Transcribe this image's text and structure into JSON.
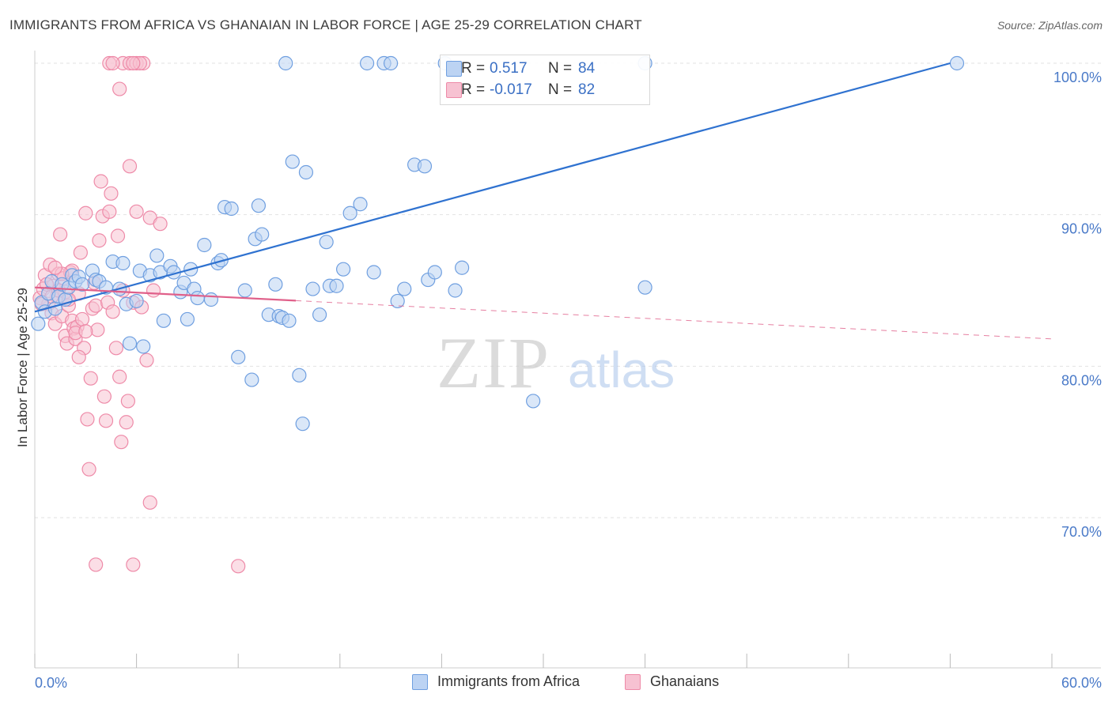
{
  "header": {
    "title": "IMMIGRANTS FROM AFRICA VS GHANAIAN IN LABOR FORCE | AGE 25-29 CORRELATION CHART",
    "source": "Source: ZipAtlas.com"
  },
  "watermark": {
    "zip": "ZIP",
    "atlas": "atlas"
  },
  "legend": {
    "rows": [
      {
        "r_label": "R =",
        "r_value": "0.517",
        "n_label": "N =",
        "n_value": "84"
      },
      {
        "r_label": "R =",
        "r_value": "-0.017",
        "n_label": "N =",
        "n_value": "82"
      }
    ]
  },
  "bottom_legend": {
    "items": [
      {
        "label": "Immigrants from Africa"
      },
      {
        "label": "Ghanaians"
      }
    ]
  },
  "colors": {
    "blue": "#6f9fe0",
    "blue_fill": "#bcd3f3",
    "blue_line": "#2f72d0",
    "pink": "#ee8aa8",
    "pink_fill": "#f7c2d2",
    "pink_line": "#e0608a",
    "tick_text": "#4a7ac8",
    "grid": "#e2e2e2"
  },
  "chart_data": {
    "type": "scatter",
    "title": "IMMIGRANTS FROM AFRICA VS GHANAIAN IN LABOR FORCE | AGE 25-29 CORRELATION CHART",
    "xlabel": "",
    "ylabel": "In Labor Force | Age 25-29",
    "xlim": [
      0,
      60
    ],
    "ylim": [
      60.5,
      101.5
    ],
    "x_tick_labels": [
      {
        "value": 0,
        "label": "0.0%"
      },
      {
        "value": 60,
        "label": "60.0%"
      }
    ],
    "y_tick_labels": [
      {
        "value": 70,
        "label": "70.0%"
      },
      {
        "value": 80,
        "label": "80.0%"
      },
      {
        "value": 90,
        "label": "90.0%"
      },
      {
        "value": 100,
        "label": "100.0%"
      }
    ],
    "x_minor_ticks": [
      0,
      6,
      12,
      18,
      24,
      30,
      36,
      42,
      48,
      54,
      60
    ],
    "series": [
      {
        "name": "Immigrants from Africa",
        "trend": {
          "x0": 0,
          "y0": 83.6,
          "x1": 54,
          "y1": 100.0,
          "dashed_from": null
        },
        "points": [
          [
            0.2,
            82.8
          ],
          [
            0.4,
            84.2
          ],
          [
            0.6,
            83.6
          ],
          [
            0.8,
            84.8
          ],
          [
            1.0,
            85.6
          ],
          [
            1.2,
            83.8
          ],
          [
            1.4,
            84.6
          ],
          [
            1.6,
            85.4
          ],
          [
            1.8,
            84.4
          ],
          [
            2.0,
            85.2
          ],
          [
            2.2,
            86.0
          ],
          [
            2.4,
            85.6
          ],
          [
            2.6,
            85.9
          ],
          [
            2.8,
            85.4
          ],
          [
            3.4,
            86.3
          ],
          [
            3.6,
            85.7
          ],
          [
            3.8,
            85.6
          ],
          [
            4.2,
            85.2
          ],
          [
            4.6,
            86.9
          ],
          [
            5.0,
            85.1
          ],
          [
            5.2,
            86.8
          ],
          [
            5.4,
            84.1
          ],
          [
            5.6,
            81.5
          ],
          [
            6.0,
            84.3
          ],
          [
            6.2,
            86.3
          ],
          [
            6.8,
            86.0
          ],
          [
            6.4,
            81.3
          ],
          [
            7.4,
            86.2
          ],
          [
            7.2,
            87.3
          ],
          [
            7.6,
            83.0
          ],
          [
            8.0,
            86.6
          ],
          [
            8.2,
            86.2
          ],
          [
            8.6,
            84.9
          ],
          [
            8.8,
            85.5
          ],
          [
            9.0,
            83.1
          ],
          [
            9.2,
            86.4
          ],
          [
            9.4,
            85.1
          ],
          [
            9.6,
            84.5
          ],
          [
            10.0,
            88.0
          ],
          [
            10.4,
            84.4
          ],
          [
            10.8,
            86.8
          ],
          [
            11.0,
            87.0
          ],
          [
            11.2,
            90.5
          ],
          [
            11.6,
            90.4
          ],
          [
            12.0,
            80.6
          ],
          [
            12.4,
            85.0
          ],
          [
            12.8,
            79.1
          ],
          [
            13.0,
            88.4
          ],
          [
            13.2,
            90.6
          ],
          [
            13.4,
            88.7
          ],
          [
            13.8,
            83.4
          ],
          [
            14.2,
            85.4
          ],
          [
            14.4,
            83.3
          ],
          [
            14.6,
            83.2
          ],
          [
            15.0,
            83.0
          ],
          [
            15.2,
            93.5
          ],
          [
            15.6,
            79.4
          ],
          [
            15.8,
            76.2
          ],
          [
            16.0,
            92.8
          ],
          [
            16.4,
            85.1
          ],
          [
            16.8,
            83.4
          ],
          [
            17.2,
            88.2
          ],
          [
            17.4,
            85.3
          ],
          [
            17.8,
            85.3
          ],
          [
            18.2,
            86.4
          ],
          [
            18.6,
            90.1
          ],
          [
            19.2,
            90.7
          ],
          [
            20.0,
            86.2
          ],
          [
            21.4,
            84.3
          ],
          [
            21.8,
            85.1
          ],
          [
            22.4,
            93.3
          ],
          [
            23.0,
            93.2
          ],
          [
            23.2,
            85.7
          ],
          [
            23.6,
            86.2
          ],
          [
            24.8,
            85.0
          ],
          [
            25.2,
            86.5
          ],
          [
            29.4,
            77.7
          ],
          [
            36.0,
            85.2
          ],
          [
            14.8,
            100
          ],
          [
            19.6,
            100
          ],
          [
            20.6,
            100
          ],
          [
            21.0,
            100
          ],
          [
            24.2,
            100
          ],
          [
            36.0,
            100
          ],
          [
            54.4,
            100
          ]
        ]
      },
      {
        "name": "Ghanaians",
        "trend": {
          "x0": 0,
          "y0": 85.2,
          "x1": 60,
          "y1": 81.8,
          "solid_until": 15.4
        },
        "points": [
          [
            0.3,
            84.5
          ],
          [
            0.5,
            85.1
          ],
          [
            0.6,
            86.0
          ],
          [
            0.8,
            84.1
          ],
          [
            0.9,
            86.7
          ],
          [
            1.0,
            83.5
          ],
          [
            1.1,
            85.3
          ],
          [
            1.2,
            82.8
          ],
          [
            1.3,
            84.6
          ],
          [
            1.4,
            86.1
          ],
          [
            1.5,
            88.7
          ],
          [
            1.6,
            83.3
          ],
          [
            1.7,
            85.8
          ],
          [
            1.8,
            82.0
          ],
          [
            1.9,
            81.5
          ],
          [
            2.0,
            84.0
          ],
          [
            2.1,
            86.2
          ],
          [
            2.2,
            83.0
          ],
          [
            2.3,
            82.5
          ],
          [
            2.4,
            81.8
          ],
          [
            2.5,
            82.6
          ],
          [
            2.6,
            84.8
          ],
          [
            2.7,
            87.5
          ],
          [
            2.8,
            83.1
          ],
          [
            2.9,
            81.2
          ],
          [
            3.0,
            90.1
          ],
          [
            3.1,
            76.5
          ],
          [
            3.2,
            73.2
          ],
          [
            3.3,
            79.2
          ],
          [
            3.4,
            83.8
          ],
          [
            3.5,
            85.5
          ],
          [
            3.6,
            84.0
          ],
          [
            3.7,
            82.4
          ],
          [
            3.8,
            88.3
          ],
          [
            3.9,
            92.2
          ],
          [
            4.0,
            89.9
          ],
          [
            4.1,
            78.0
          ],
          [
            4.2,
            76.4
          ],
          [
            4.3,
            84.2
          ],
          [
            4.4,
            90.2
          ],
          [
            4.5,
            91.4
          ],
          [
            4.6,
            83.6
          ],
          [
            4.8,
            81.2
          ],
          [
            4.9,
            88.6
          ],
          [
            5.0,
            79.3
          ],
          [
            5.1,
            75.0
          ],
          [
            5.2,
            85.0
          ],
          [
            5.4,
            76.3
          ],
          [
            5.5,
            77.7
          ],
          [
            5.6,
            93.2
          ],
          [
            5.8,
            84.2
          ],
          [
            6.0,
            90.2
          ],
          [
            6.3,
            83.9
          ],
          [
            6.6,
            80.4
          ],
          [
            6.8,
            71.0
          ],
          [
            6.8,
            89.8
          ],
          [
            7.0,
            85.0
          ],
          [
            7.4,
            89.4
          ],
          [
            1.0,
            84.6
          ],
          [
            0.7,
            85.4
          ],
          [
            1.8,
            84.9
          ],
          [
            2.4,
            82.2
          ],
          [
            3.6,
            66.9
          ],
          [
            5.8,
            66.9
          ],
          [
            12.0,
            66.8
          ],
          [
            4.4,
            100
          ],
          [
            5.2,
            100
          ],
          [
            5.6,
            100
          ],
          [
            6.0,
            100
          ],
          [
            6.4,
            100
          ],
          [
            4.6,
            100
          ],
          [
            5.0,
            98.3
          ],
          [
            3.0,
            82.3
          ],
          [
            2.6,
            80.6
          ],
          [
            1.4,
            85.0
          ],
          [
            2.2,
            86.3
          ],
          [
            1.6,
            86.1
          ],
          [
            0.4,
            84.1
          ],
          [
            6.2,
            100
          ],
          [
            5.8,
            100
          ],
          [
            2.0,
            84.4
          ],
          [
            1.2,
            86.5
          ]
        ]
      }
    ]
  }
}
